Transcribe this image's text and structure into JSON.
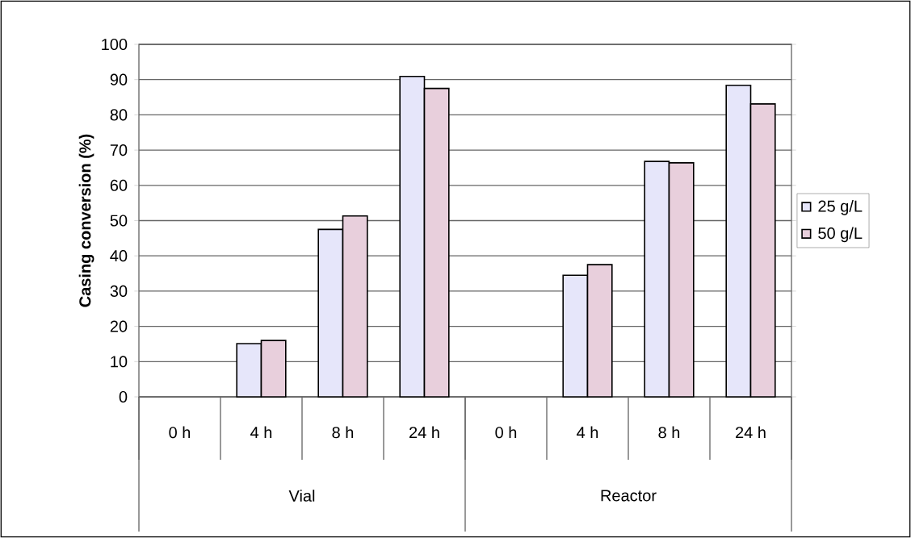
{
  "chart_data": {
    "type": "bar",
    "ylabel": "Casing conversion (%)",
    "categories": [
      "0 h",
      "4 h",
      "8 h",
      "24 h",
      "0 h",
      "4 h",
      "8 h",
      "24 h"
    ],
    "annotations": [
      "Vial",
      "Reactor"
    ],
    "series": [
      {
        "name": "25 g/L",
        "color": "#e6e6fa",
        "values": [
          null,
          15.1,
          47.5,
          90.9,
          null,
          34.5,
          66.8,
          88.4
        ]
      },
      {
        "name": "50 g/L",
        "color": "#e8cfdc",
        "values": [
          null,
          16.0,
          51.3,
          87.5,
          null,
          37.5,
          66.4,
          83.1
        ]
      }
    ],
    "ylim": [
      0,
      100
    ],
    "yticks": [
      0,
      10,
      20,
      30,
      40,
      50,
      60,
      70,
      80,
      90,
      100
    ],
    "grid": "y",
    "legend": "right"
  }
}
